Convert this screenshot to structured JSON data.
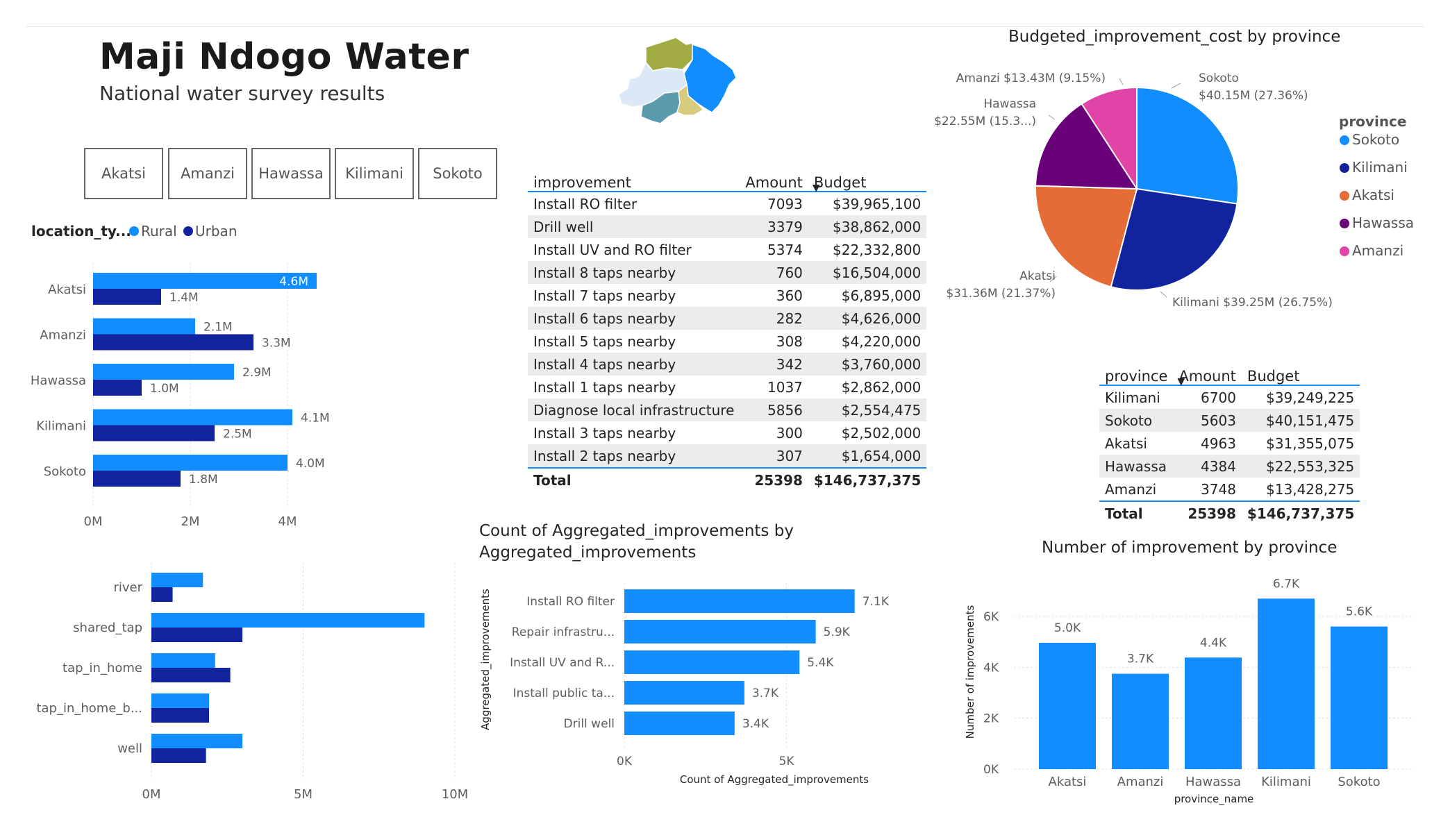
{
  "header": {
    "title": "Maji Ndogo Water",
    "subtitle": "National water survey results"
  },
  "slicer": {
    "items": [
      "Akatsi",
      "Amanzi",
      "Hawassa",
      "Kilimani",
      "Sokoto"
    ]
  },
  "map": {
    "region_colors": [
      "#a3ac44",
      "#118dff",
      "#dbe9f6",
      "#5b9bae",
      "#d8cb7e"
    ]
  },
  "improvement_table": {
    "headers": [
      "improvement",
      "Amount",
      "Budget"
    ],
    "rows": [
      [
        "Install RO filter",
        "7093",
        "$39,965,100"
      ],
      [
        "Drill well",
        "3379",
        "$38,862,000"
      ],
      [
        "Install UV and RO filter",
        "5374",
        "$22,332,800"
      ],
      [
        "Install 8 taps nearby",
        "760",
        "$16,504,000"
      ],
      [
        "Install 7 taps nearby",
        "360",
        "$6,895,000"
      ],
      [
        "Install 6 taps nearby",
        "282",
        "$4,626,000"
      ],
      [
        "Install 5 taps nearby",
        "308",
        "$4,220,000"
      ],
      [
        "Install 4 taps nearby",
        "342",
        "$3,760,000"
      ],
      [
        "Install 1 taps nearby",
        "1037",
        "$2,862,000"
      ],
      [
        "Diagnose local infrastructure",
        "5856",
        "$2,554,475"
      ],
      [
        "Install 3 taps nearby",
        "300",
        "$2,502,000"
      ],
      [
        "Install 2 taps nearby",
        "307",
        "$1,654,000"
      ]
    ],
    "total": [
      "Total",
      "25398",
      "$146,737,375"
    ]
  },
  "province_table": {
    "headers": [
      "province",
      "Amount",
      "Budget"
    ],
    "rows": [
      [
        "Kilimani",
        "6700",
        "$39,249,225"
      ],
      [
        "Sokoto",
        "5603",
        "$40,151,475"
      ],
      [
        "Akatsi",
        "4963",
        "$31,355,075"
      ],
      [
        "Hawassa",
        "4384",
        "$22,553,325"
      ],
      [
        "Amanzi",
        "3748",
        "$13,428,275"
      ]
    ],
    "total": [
      "Total",
      "25398",
      "$146,737,375"
    ]
  },
  "colors": {
    "rural": "#118dff",
    "urban": "#12239e",
    "bar": "#118dff"
  },
  "chart_data": [
    {
      "id": "location_chart",
      "type": "bar",
      "orientation": "horizontal",
      "legend_title": "location_ty...",
      "categories": [
        "Akatsi",
        "Amanzi",
        "Hawassa",
        "Kilimani",
        "Sokoto"
      ],
      "series": [
        {
          "name": "Rural",
          "values": [
            4.6,
            2.1,
            2.9,
            4.1,
            4.0
          ],
          "labels": [
            "4.6M",
            "2.1M",
            "2.9M",
            "4.1M",
            "4.0M"
          ]
        },
        {
          "name": "Urban",
          "values": [
            1.4,
            3.3,
            1.0,
            2.5,
            1.8
          ],
          "labels": [
            "1.4M",
            "3.3M",
            "1.0M",
            "2.5M",
            "1.8M"
          ]
        }
      ],
      "xlim": [
        0,
        5.5
      ],
      "xticks": [
        0,
        2,
        4
      ],
      "xtick_labels": [
        "0M",
        "2M",
        "4M"
      ],
      "grid": true
    },
    {
      "id": "source_chart",
      "type": "bar",
      "orientation": "horizontal",
      "categories": [
        "river",
        "shared_tap",
        "tap_in_home",
        "tap_in_home_b...",
        "well"
      ],
      "series": [
        {
          "values": [
            1.7,
            9.0,
            2.1,
            1.9,
            3.0
          ]
        },
        {
          "values": [
            0.7,
            3.0,
            2.6,
            1.9,
            1.8
          ]
        }
      ],
      "xlim": [
        0,
        10
      ],
      "xticks": [
        0,
        5,
        10
      ],
      "xtick_labels": [
        "0M",
        "5M",
        "10M"
      ],
      "grid": true
    },
    {
      "id": "aggregated_chart",
      "type": "bar",
      "orientation": "horizontal",
      "title": "Count of Aggregated_improvements by Aggregated_improvements",
      "title_lines": [
        "Count of Aggregated_improvements by",
        "Aggregated_improvements"
      ],
      "xlabel": "Count of Aggregated_improvements",
      "ylabel": "Aggregated_improvements",
      "categories": [
        "Install RO filter",
        "Repair infrastru...",
        "Install UV and R...",
        "Install public ta...",
        "Drill well"
      ],
      "values": [
        7.1,
        5.9,
        5.4,
        3.7,
        3.4
      ],
      "labels": [
        "7.1K",
        "5.9K",
        "5.4K",
        "3.7K",
        "3.4K"
      ],
      "xlim": [
        0,
        8
      ],
      "xticks": [
        0,
        5
      ],
      "xtick_labels": [
        "0K",
        "5K"
      ],
      "grid": true
    },
    {
      "id": "pie_chart",
      "type": "pie",
      "title": "Budgeted_improvement_cost by province",
      "legend_title": "province",
      "legend_position": "right",
      "slices": [
        {
          "name": "Sokoto",
          "value": 40.15,
          "color": "#118dff",
          "label1": "Sokoto",
          "label2": "$40.15M (27.36%)"
        },
        {
          "name": "Kilimani",
          "value": 39.25,
          "color": "#12239e",
          "label1": "Kilimani $39.25M (26.75%)",
          "label2": ""
        },
        {
          "name": "Akatsi",
          "value": 31.36,
          "color": "#e66c37",
          "label1": "Akatsi",
          "label2": "$31.36M (21.37%)"
        },
        {
          "name": "Hawassa",
          "value": 22.55,
          "color": "#6b007b",
          "label1": "Hawassa",
          "label2": "$22.55M (15.3...)"
        },
        {
          "name": "Amanzi",
          "value": 13.43,
          "color": "#e044a7",
          "label1": "Amanzi $13.43M (9.15%)",
          "label2": ""
        }
      ]
    },
    {
      "id": "province_chart",
      "type": "bar",
      "orientation": "vertical",
      "title": "Number of improvement by province",
      "xlabel": "province_name",
      "ylabel": "Number of improvements",
      "categories": [
        "Akatsi",
        "Amanzi",
        "Hawassa",
        "Kilimani",
        "Sokoto"
      ],
      "values": [
        4963,
        3748,
        4384,
        6700,
        5603
      ],
      "labels": [
        "5.0K",
        "3.7K",
        "4.4K",
        "6.7K",
        "5.6K"
      ],
      "ylim": [
        0,
        7000
      ],
      "yticks": [
        0,
        2000,
        4000,
        6000
      ],
      "ytick_labels": [
        "0K",
        "2K",
        "4K",
        "6K"
      ],
      "grid": true
    }
  ]
}
